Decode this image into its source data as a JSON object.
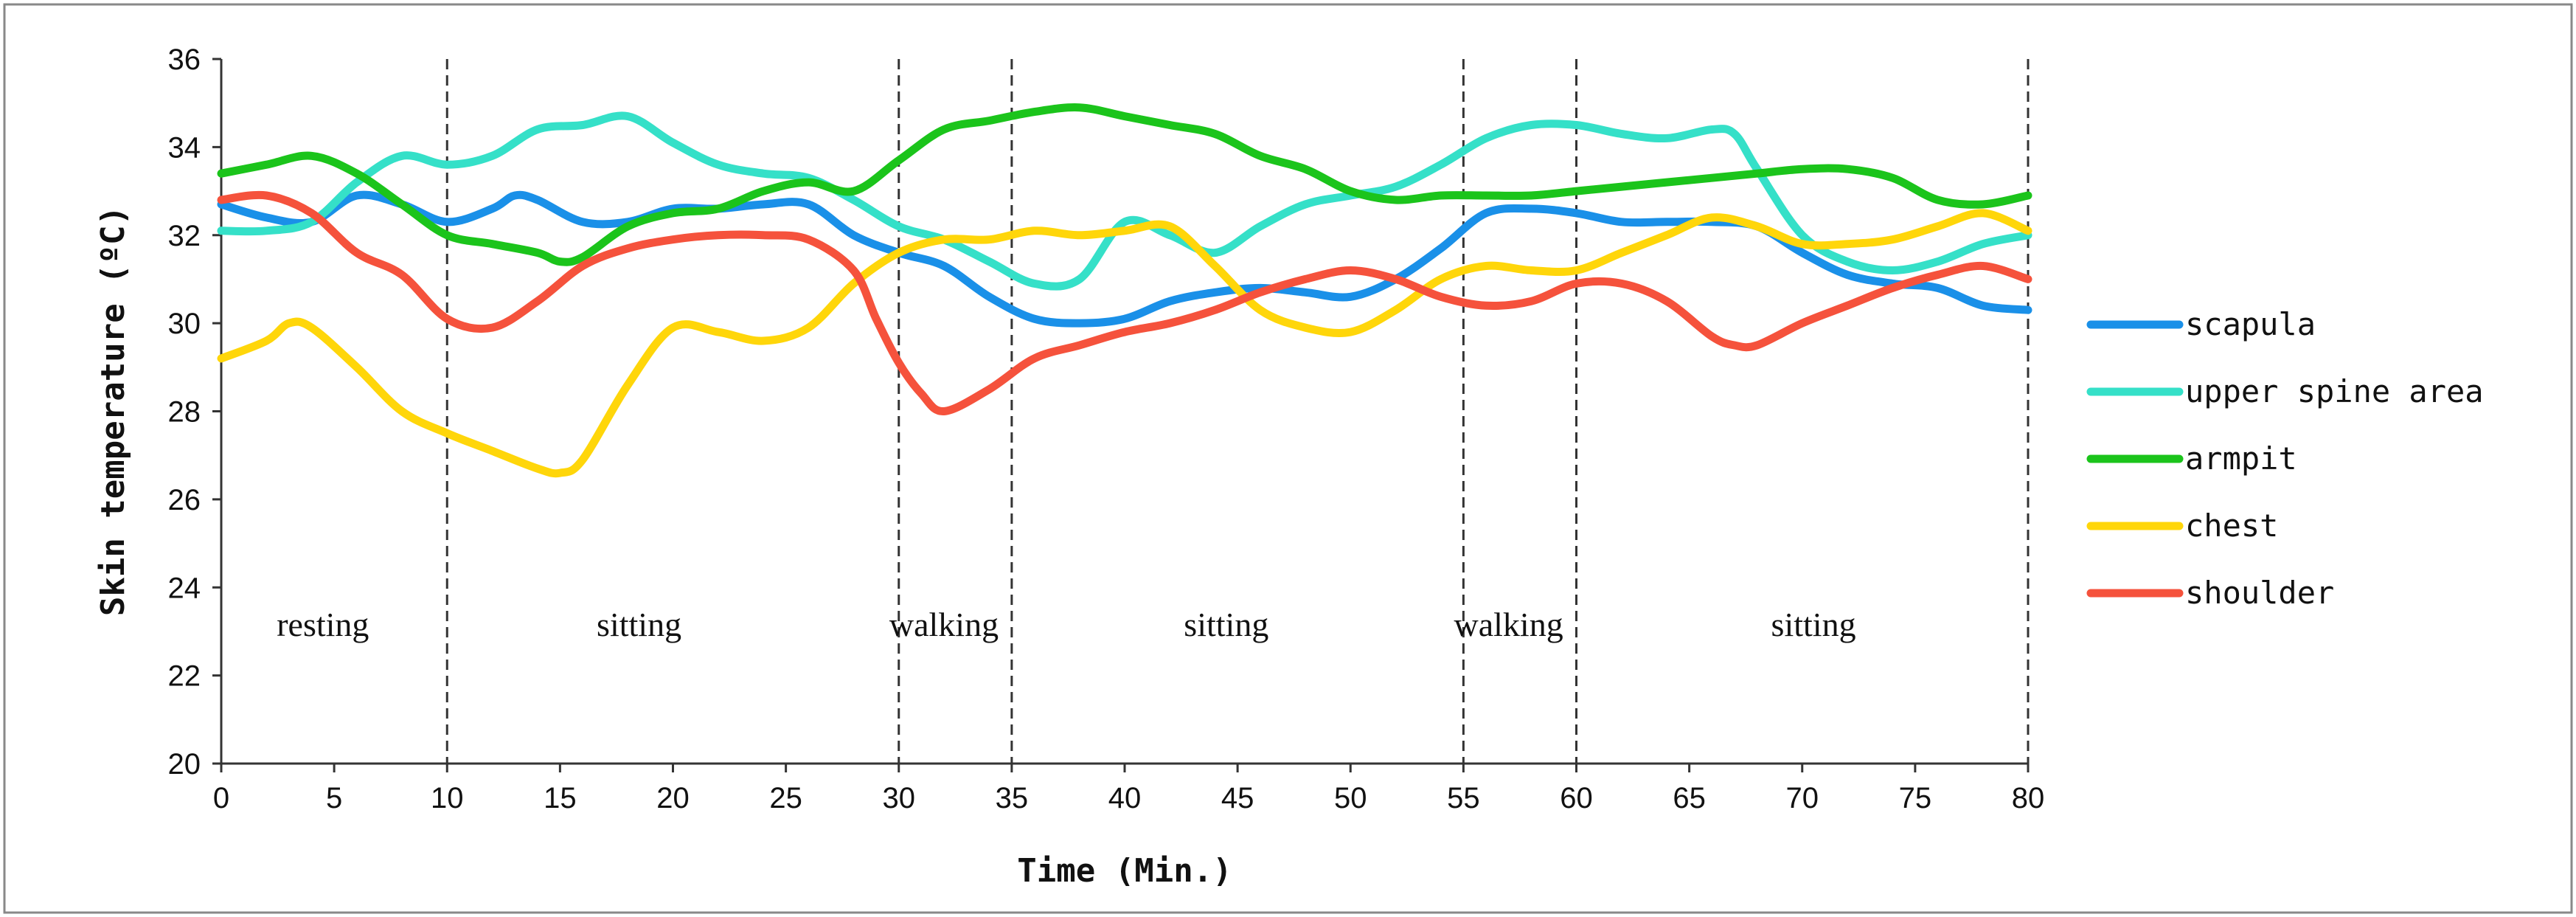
{
  "chart_data": {
    "type": "line",
    "title": "",
    "xlabel": "Time (Min.)",
    "ylabel": "Skin temperature (ºC)",
    "xlim": [
      0,
      80
    ],
    "ylim": [
      20,
      36
    ],
    "x_ticks": [
      "0",
      "5",
      "10",
      "15",
      "20",
      "25",
      "30",
      "35",
      "40",
      "45",
      "50",
      "55",
      "60",
      "65",
      "70",
      "75",
      "80"
    ],
    "y_ticks": [
      "20",
      "22",
      "24",
      "26",
      "28",
      "30",
      "32",
      "34",
      "36"
    ],
    "phase_boundaries": [
      10,
      30,
      35,
      55,
      60,
      80
    ],
    "phases": [
      {
        "label": "resting",
        "x": 4.5
      },
      {
        "label": "sitting",
        "x": 18.5
      },
      {
        "label": "walking",
        "x": 32
      },
      {
        "label": "sitting",
        "x": 44.5
      },
      {
        "label": "walking",
        "x": 57
      },
      {
        "label": "sitting",
        "x": 70.5
      }
    ],
    "series": [
      {
        "name": "scapula",
        "color": "#1a90e8",
        "points": [
          [
            0,
            32.7
          ],
          [
            2,
            32.4
          ],
          [
            4,
            32.3
          ],
          [
            6,
            32.9
          ],
          [
            8,
            32.7
          ],
          [
            10,
            32.3
          ],
          [
            12,
            32.6
          ],
          [
            13,
            32.9
          ],
          [
            14,
            32.8
          ],
          [
            16,
            32.3
          ],
          [
            18,
            32.3
          ],
          [
            20,
            32.6
          ],
          [
            22,
            32.6
          ],
          [
            24,
            32.7
          ],
          [
            26,
            32.7
          ],
          [
            28,
            32.0
          ],
          [
            30,
            31.6
          ],
          [
            32,
            31.3
          ],
          [
            34,
            30.6
          ],
          [
            36,
            30.1
          ],
          [
            38,
            30.0
          ],
          [
            40,
            30.1
          ],
          [
            42,
            30.5
          ],
          [
            44,
            30.7
          ],
          [
            46,
            30.8
          ],
          [
            48,
            30.7
          ],
          [
            50,
            30.6
          ],
          [
            52,
            31.0
          ],
          [
            54,
            31.7
          ],
          [
            56,
            32.5
          ],
          [
            58,
            32.6
          ],
          [
            60,
            32.5
          ],
          [
            62,
            32.3
          ],
          [
            64,
            32.3
          ],
          [
            66,
            32.3
          ],
          [
            68,
            32.2
          ],
          [
            70,
            31.6
          ],
          [
            72,
            31.1
          ],
          [
            74,
            30.9
          ],
          [
            76,
            30.8
          ],
          [
            78,
            30.4
          ],
          [
            80,
            30.3
          ]
        ]
      },
      {
        "name": "upper spine area",
        "color": "#35e0c8",
        "points": [
          [
            0,
            32.1
          ],
          [
            2,
            32.1
          ],
          [
            4,
            32.3
          ],
          [
            6,
            33.2
          ],
          [
            8,
            33.8
          ],
          [
            10,
            33.6
          ],
          [
            12,
            33.8
          ],
          [
            14,
            34.4
          ],
          [
            16,
            34.5
          ],
          [
            18,
            34.7
          ],
          [
            20,
            34.1
          ],
          [
            22,
            33.6
          ],
          [
            24,
            33.4
          ],
          [
            26,
            33.3
          ],
          [
            28,
            32.8
          ],
          [
            30,
            32.2
          ],
          [
            32,
            31.9
          ],
          [
            34,
            31.4
          ],
          [
            36,
            30.9
          ],
          [
            38,
            31.0
          ],
          [
            40,
            32.3
          ],
          [
            42,
            32.0
          ],
          [
            44,
            31.6
          ],
          [
            46,
            32.2
          ],
          [
            48,
            32.7
          ],
          [
            50,
            32.9
          ],
          [
            52,
            33.1
          ],
          [
            54,
            33.6
          ],
          [
            56,
            34.2
          ],
          [
            58,
            34.5
          ],
          [
            60,
            34.5
          ],
          [
            62,
            34.3
          ],
          [
            64,
            34.2
          ],
          [
            66,
            34.4
          ],
          [
            67,
            34.3
          ],
          [
            68,
            33.5
          ],
          [
            70,
            32.0
          ],
          [
            72,
            31.4
          ],
          [
            74,
            31.2
          ],
          [
            76,
            31.4
          ],
          [
            78,
            31.8
          ],
          [
            80,
            32.0
          ]
        ]
      },
      {
        "name": "armpit",
        "color": "#1bc41b",
        "points": [
          [
            0,
            33.4
          ],
          [
            2,
            33.6
          ],
          [
            4,
            33.8
          ],
          [
            6,
            33.4
          ],
          [
            8,
            32.7
          ],
          [
            10,
            32.0
          ],
          [
            12,
            31.8
          ],
          [
            14,
            31.6
          ],
          [
            15,
            31.4
          ],
          [
            16,
            31.5
          ],
          [
            18,
            32.2
          ],
          [
            20,
            32.5
          ],
          [
            22,
            32.6
          ],
          [
            24,
            33.0
          ],
          [
            26,
            33.2
          ],
          [
            28,
            33.0
          ],
          [
            30,
            33.7
          ],
          [
            32,
            34.4
          ],
          [
            34,
            34.6
          ],
          [
            36,
            34.8
          ],
          [
            38,
            34.9
          ],
          [
            40,
            34.7
          ],
          [
            42,
            34.5
          ],
          [
            44,
            34.3
          ],
          [
            46,
            33.8
          ],
          [
            48,
            33.5
          ],
          [
            50,
            33.0
          ],
          [
            52,
            32.8
          ],
          [
            54,
            32.9
          ],
          [
            56,
            32.9
          ],
          [
            58,
            32.9
          ],
          [
            60,
            33.0
          ],
          [
            62,
            33.1
          ],
          [
            64,
            33.2
          ],
          [
            66,
            33.3
          ],
          [
            68,
            33.4
          ],
          [
            70,
            33.5
          ],
          [
            72,
            33.5
          ],
          [
            74,
            33.3
          ],
          [
            76,
            32.8
          ],
          [
            78,
            32.7
          ],
          [
            80,
            32.9
          ]
        ]
      },
      {
        "name": "chest",
        "color": "#ffd60a",
        "points": [
          [
            0,
            29.2
          ],
          [
            2,
            29.6
          ],
          [
            3,
            30.0
          ],
          [
            4,
            29.9
          ],
          [
            6,
            29.0
          ],
          [
            8,
            28.0
          ],
          [
            10,
            27.5
          ],
          [
            12,
            27.1
          ],
          [
            14,
            26.7
          ],
          [
            15,
            26.6
          ],
          [
            16,
            26.9
          ],
          [
            18,
            28.6
          ],
          [
            20,
            29.9
          ],
          [
            22,
            29.8
          ],
          [
            24,
            29.6
          ],
          [
            26,
            29.9
          ],
          [
            28,
            30.9
          ],
          [
            30,
            31.6
          ],
          [
            32,
            31.9
          ],
          [
            34,
            31.9
          ],
          [
            36,
            32.1
          ],
          [
            38,
            32.0
          ],
          [
            40,
            32.1
          ],
          [
            42,
            32.2
          ],
          [
            44,
            31.3
          ],
          [
            46,
            30.3
          ],
          [
            48,
            29.9
          ],
          [
            50,
            29.8
          ],
          [
            52,
            30.3
          ],
          [
            54,
            31.0
          ],
          [
            56,
            31.3
          ],
          [
            58,
            31.2
          ],
          [
            60,
            31.2
          ],
          [
            62,
            31.6
          ],
          [
            64,
            32.0
          ],
          [
            66,
            32.4
          ],
          [
            68,
            32.2
          ],
          [
            70,
            31.8
          ],
          [
            72,
            31.8
          ],
          [
            74,
            31.9
          ],
          [
            76,
            32.2
          ],
          [
            78,
            32.5
          ],
          [
            80,
            32.1
          ]
        ]
      },
      {
        "name": "shoulder",
        "color": "#f5523c",
        "points": [
          [
            0,
            32.8
          ],
          [
            2,
            32.9
          ],
          [
            4,
            32.5
          ],
          [
            6,
            31.6
          ],
          [
            8,
            31.1
          ],
          [
            10,
            30.1
          ],
          [
            12,
            29.9
          ],
          [
            14,
            30.5
          ],
          [
            16,
            31.3
          ],
          [
            18,
            31.7
          ],
          [
            20,
            31.9
          ],
          [
            22,
            32.0
          ],
          [
            24,
            32.0
          ],
          [
            26,
            31.9
          ],
          [
            28,
            31.2
          ],
          [
            29,
            30.1
          ],
          [
            30,
            29.1
          ],
          [
            31,
            28.4
          ],
          [
            32,
            28.0
          ],
          [
            34,
            28.5
          ],
          [
            36,
            29.2
          ],
          [
            38,
            29.5
          ],
          [
            40,
            29.8
          ],
          [
            42,
            30.0
          ],
          [
            44,
            30.3
          ],
          [
            46,
            30.7
          ],
          [
            48,
            31.0
          ],
          [
            50,
            31.2
          ],
          [
            52,
            31.0
          ],
          [
            54,
            30.6
          ],
          [
            56,
            30.4
          ],
          [
            58,
            30.5
          ],
          [
            60,
            30.9
          ],
          [
            62,
            30.9
          ],
          [
            64,
            30.5
          ],
          [
            66,
            29.7
          ],
          [
            67,
            29.5
          ],
          [
            68,
            29.5
          ],
          [
            70,
            30.0
          ],
          [
            72,
            30.4
          ],
          [
            74,
            30.8
          ],
          [
            76,
            31.1
          ],
          [
            78,
            31.3
          ],
          [
            80,
            31.0
          ]
        ]
      }
    ]
  }
}
